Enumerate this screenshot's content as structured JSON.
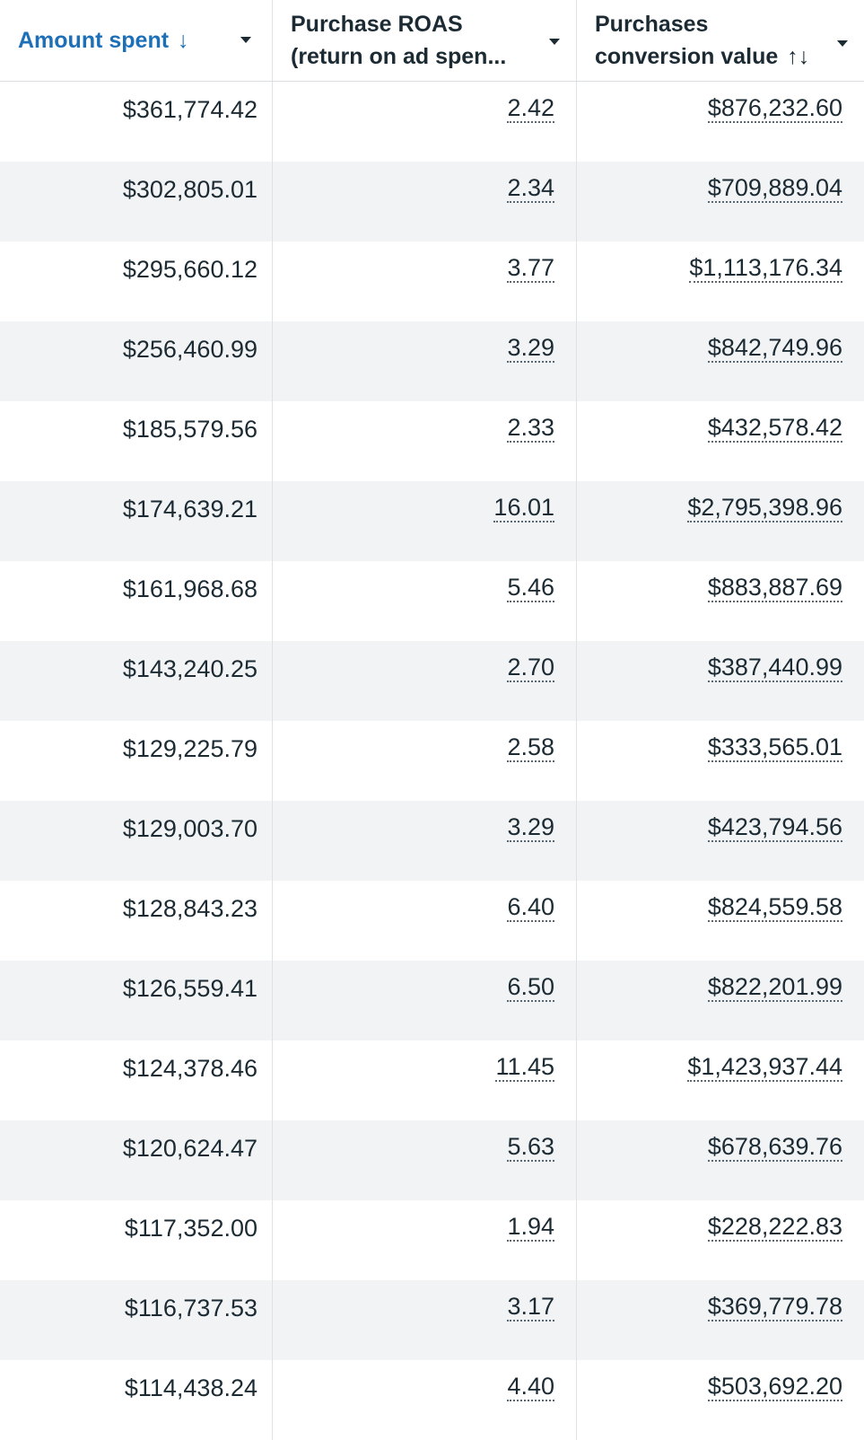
{
  "columns": [
    {
      "label_lines": [
        "Amount spent"
      ],
      "sort_indicator": "↓",
      "active": true
    },
    {
      "label_lines": [
        "Purchase ROAS",
        "(return on ad spen..."
      ],
      "sort_indicator": ""
    },
    {
      "label_lines": [
        "Purchases",
        "conversion value"
      ],
      "sort_indicator": "↑↓"
    }
  ],
  "rows": [
    {
      "amount_spent": "$361,774.42",
      "roas": "2.42",
      "conversion_value": "$876,232.60"
    },
    {
      "amount_spent": "$302,805.01",
      "roas": "2.34",
      "conversion_value": "$709,889.04"
    },
    {
      "amount_spent": "$295,660.12",
      "roas": "3.77",
      "conversion_value": "$1,113,176.34"
    },
    {
      "amount_spent": "$256,460.99",
      "roas": "3.29",
      "conversion_value": "$842,749.96"
    },
    {
      "amount_spent": "$185,579.56",
      "roas": "2.33",
      "conversion_value": "$432,578.42"
    },
    {
      "amount_spent": "$174,639.21",
      "roas": "16.01",
      "conversion_value": "$2,795,398.96"
    },
    {
      "amount_spent": "$161,968.68",
      "roas": "5.46",
      "conversion_value": "$883,887.69"
    },
    {
      "amount_spent": "$143,240.25",
      "roas": "2.70",
      "conversion_value": "$387,440.99"
    },
    {
      "amount_spent": "$129,225.79",
      "roas": "2.58",
      "conversion_value": "$333,565.01"
    },
    {
      "amount_spent": "$129,003.70",
      "roas": "3.29",
      "conversion_value": "$423,794.56"
    },
    {
      "amount_spent": "$128,843.23",
      "roas": "6.40",
      "conversion_value": "$824,559.58"
    },
    {
      "amount_spent": "$126,559.41",
      "roas": "6.50",
      "conversion_value": "$822,201.99"
    },
    {
      "amount_spent": "$124,378.46",
      "roas": "11.45",
      "conversion_value": "$1,423,937.44"
    },
    {
      "amount_spent": "$120,624.47",
      "roas": "5.63",
      "conversion_value": "$678,639.76"
    },
    {
      "amount_spent": "$117,352.00",
      "roas": "1.94",
      "conversion_value": "$228,222.83"
    },
    {
      "amount_spent": "$116,737.53",
      "roas": "3.17",
      "conversion_value": "$369,779.78"
    },
    {
      "amount_spent": "$114,438.24",
      "roas": "4.40",
      "conversion_value": "$503,692.20"
    }
  ],
  "colors": {
    "active_header": "#1d6fb8",
    "text": "#1c2b33",
    "alt_row": "#f1f3f5",
    "divider": "#dfe2e5"
  },
  "icons": {
    "dropdown": "caret-down-icon"
  }
}
